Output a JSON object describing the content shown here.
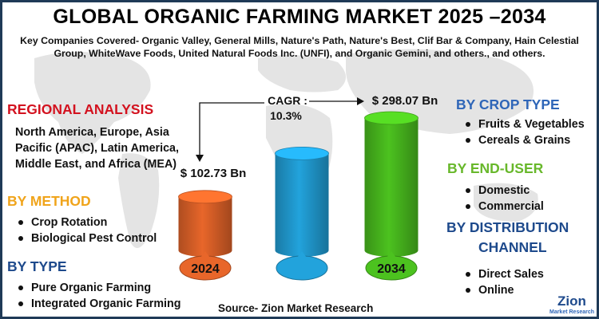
{
  "title": "GLOBAL ORGANIC FARMING MARKET 2025 –2034",
  "subtitle": "Key Companies Covered- Organic Valley, General Mills, Nature's Path, Nature's Best, Clif Bar & Company, Hain Celestial Group, WhiteWave Foods, United Natural Foods Inc. (UNFI), and Organic Gemini, and others., and others.",
  "regional": {
    "heading": "REGIONAL ANALYSIS",
    "text": "North America, Europe, Asia Pacific (APAC), Latin America, Middle East, and Africa (MEA)"
  },
  "method": {
    "heading": "BY METHOD",
    "items": [
      "Crop Rotation",
      "Biological Pest Control"
    ]
  },
  "type": {
    "heading": "BY TYPE",
    "items": [
      "Pure Organic Farming",
      "Integrated Organic Farming"
    ]
  },
  "crop_type": {
    "heading": "BY CROP TYPE",
    "items": [
      "Fruits & Vegetables",
      "Cereals & Grains"
    ]
  },
  "end_user": {
    "heading": "BY END-USER",
    "items": [
      "Domestic",
      "Commercial"
    ]
  },
  "distribution": {
    "heading_line1": "BY DISTRIBUTION",
    "heading_line2": "CHANNEL",
    "items": [
      "Direct Sales",
      "Online"
    ]
  },
  "source": "Source- Zion Market Research",
  "logo": {
    "name": "Zion",
    "tagline": "Market Research"
  },
  "colors": {
    "bar_2024": "#e8662a",
    "bar_mid": "#22a3dc",
    "bar_2034": "#4cc21f",
    "heading_red": "#d3121f",
    "heading_orange": "#f0a41b",
    "heading_navy": "#1e4a8c"
  },
  "chart_data": {
    "type": "bar",
    "categories": [
      "2024",
      "",
      "2034"
    ],
    "values": [
      102.73,
      null,
      298.07
    ],
    "value_labels": [
      "$ 102.73 Bn",
      "",
      "$ 298.07 Bn"
    ],
    "cagr_label": "CAGR :",
    "cagr_value": "10.3%"
  }
}
